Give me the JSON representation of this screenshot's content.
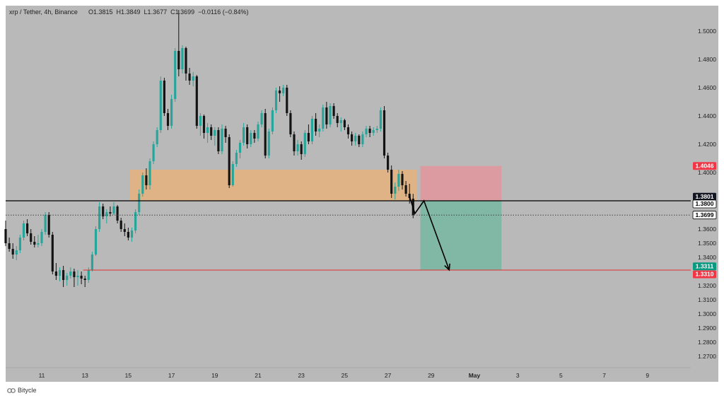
{
  "header": {
    "symbol": "xrp / Tether, 4h, Binance",
    "ohlc": "O1.3815  H1.3849  L1.3677  C1.3699  −0.0116 (−0.84%)"
  },
  "brand": {
    "name": "Bitycle"
  },
  "colors": {
    "background": "#b9b9b9",
    "bullish": "#26a69a",
    "bearish": "#131313",
    "zone": "#e6b27c",
    "stop_zone": "#e8909a",
    "target_zone": "#6fb79f",
    "red_tag": "#f23645",
    "green_tag": "#089981",
    "black_tag": "#131722"
  },
  "chart_data": {
    "type": "candlestick",
    "title": "xrp / Tether, 4h, Binance",
    "y_range": [
      1.262,
      1.518
    ],
    "x_range": [
      0,
      190
    ],
    "y_ticks": [
      "1.5000",
      "1.4800",
      "1.4600",
      "1.4400",
      "1.4200",
      "1.4000",
      "1.3600",
      "1.3500",
      "1.3400",
      "1.3200",
      "1.3100",
      "1.3000",
      "1.2900",
      "1.2800",
      "1.2700"
    ],
    "x_ticks": [
      {
        "x": 10,
        "label": "11"
      },
      {
        "x": 22,
        "label": "13"
      },
      {
        "x": 34,
        "label": "15"
      },
      {
        "x": 46,
        "label": "17"
      },
      {
        "x": 58,
        "label": "19"
      },
      {
        "x": 70,
        "label": "21"
      },
      {
        "x": 82,
        "label": "23"
      },
      {
        "x": 94,
        "label": "25"
      },
      {
        "x": 106,
        "label": "27"
      },
      {
        "x": 118,
        "label": "29"
      },
      {
        "x": 130,
        "label": "May"
      },
      {
        "x": 142,
        "label": "3"
      },
      {
        "x": 154,
        "label": "5"
      },
      {
        "x": 166,
        "label": "7"
      },
      {
        "x": 178,
        "label": "9"
      }
    ],
    "candles": [
      [
        0,
        1.36,
        1.366,
        1.348,
        1.35
      ],
      [
        1,
        1.35,
        1.354,
        1.344,
        1.346
      ],
      [
        2,
        1.346,
        1.35,
        1.339,
        1.342
      ],
      [
        3,
        1.342,
        1.348,
        1.338,
        1.345
      ],
      [
        4,
        1.345,
        1.356,
        1.343,
        1.354
      ],
      [
        5,
        1.354,
        1.366,
        1.352,
        1.364
      ],
      [
        6,
        1.364,
        1.367,
        1.355,
        1.357
      ],
      [
        7,
        1.357,
        1.36,
        1.349,
        1.351
      ],
      [
        8,
        1.351,
        1.355,
        1.347,
        1.349
      ],
      [
        9,
        1.349,
        1.356,
        1.347,
        1.35
      ],
      [
        10,
        1.35,
        1.36,
        1.348,
        1.358
      ],
      [
        11,
        1.358,
        1.372,
        1.356,
        1.37
      ],
      [
        12,
        1.37,
        1.372,
        1.354,
        1.356
      ],
      [
        13,
        1.356,
        1.358,
        1.328,
        1.33
      ],
      [
        14,
        1.33,
        1.336,
        1.324,
        1.327
      ],
      [
        15,
        1.327,
        1.333,
        1.323,
        1.331
      ],
      [
        16,
        1.331,
        1.334,
        1.319,
        1.324
      ],
      [
        17,
        1.324,
        1.329,
        1.32,
        1.327
      ],
      [
        18,
        1.327,
        1.333,
        1.325,
        1.33
      ],
      [
        19,
        1.33,
        1.332,
        1.319,
        1.326
      ],
      [
        20,
        1.326,
        1.331,
        1.32,
        1.327
      ],
      [
        21,
        1.327,
        1.33,
        1.321,
        1.325
      ],
      [
        22,
        1.325,
        1.327,
        1.319,
        1.324
      ],
      [
        23,
        1.324,
        1.333,
        1.322,
        1.331
      ],
      [
        24,
        1.331,
        1.344,
        1.33,
        1.342
      ],
      [
        25,
        1.342,
        1.362,
        1.341,
        1.36
      ],
      [
        26,
        1.36,
        1.379,
        1.358,
        1.376
      ],
      [
        27,
        1.376,
        1.378,
        1.367,
        1.369
      ],
      [
        28,
        1.369,
        1.374,
        1.364,
        1.372
      ],
      [
        29,
        1.372,
        1.376,
        1.369,
        1.371
      ],
      [
        30,
        1.371,
        1.379,
        1.37,
        1.376
      ],
      [
        31,
        1.376,
        1.377,
        1.364,
        1.366
      ],
      [
        32,
        1.366,
        1.368,
        1.358,
        1.36
      ],
      [
        33,
        1.36,
        1.364,
        1.355,
        1.358
      ],
      [
        34,
        1.358,
        1.361,
        1.352,
        1.354
      ],
      [
        35,
        1.354,
        1.361,
        1.351,
        1.359
      ],
      [
        36,
        1.359,
        1.374,
        1.357,
        1.372
      ],
      [
        37,
        1.372,
        1.388,
        1.37,
        1.385
      ],
      [
        38,
        1.385,
        1.4,
        1.383,
        1.398
      ],
      [
        39,
        1.398,
        1.403,
        1.388,
        1.391
      ],
      [
        40,
        1.391,
        1.41,
        1.388,
        1.408
      ],
      [
        41,
        1.408,
        1.422,
        1.406,
        1.42
      ],
      [
        42,
        1.42,
        1.432,
        1.418,
        1.43
      ],
      [
        43,
        1.43,
        1.468,
        1.428,
        1.465
      ],
      [
        44,
        1.465,
        1.467,
        1.44,
        1.442
      ],
      [
        45,
        1.442,
        1.445,
        1.43,
        1.433
      ],
      [
        46,
        1.433,
        1.455,
        1.431,
        1.452
      ],
      [
        47,
        1.452,
        1.488,
        1.45,
        1.486
      ],
      [
        48,
        1.486,
        1.515,
        1.468,
        1.473
      ],
      [
        49,
        1.473,
        1.49,
        1.47,
        1.488
      ],
      [
        50,
        1.488,
        1.489,
        1.465,
        1.47
      ],
      [
        51,
        1.47,
        1.474,
        1.462,
        1.465
      ],
      [
        52,
        1.465,
        1.471,
        1.461,
        1.468
      ],
      [
        53,
        1.468,
        1.469,
        1.431,
        1.433
      ],
      [
        54,
        1.433,
        1.442,
        1.426,
        1.44
      ],
      [
        55,
        1.44,
        1.441,
        1.424,
        1.428
      ],
      [
        56,
        1.428,
        1.435,
        1.421,
        1.432
      ],
      [
        57,
        1.432,
        1.434,
        1.423,
        1.426
      ],
      [
        58,
        1.426,
        1.432,
        1.419,
        1.43
      ],
      [
        59,
        1.43,
        1.432,
        1.413,
        1.415
      ],
      [
        60,
        1.415,
        1.434,
        1.413,
        1.431
      ],
      [
        61,
        1.431,
        1.433,
        1.421,
        1.425
      ],
      [
        62,
        1.425,
        1.427,
        1.389,
        1.391
      ],
      [
        63,
        1.391,
        1.408,
        1.39,
        1.406
      ],
      [
        64,
        1.406,
        1.416,
        1.404,
        1.414
      ],
      [
        65,
        1.414,
        1.423,
        1.41,
        1.421
      ],
      [
        66,
        1.421,
        1.435,
        1.419,
        1.432
      ],
      [
        67,
        1.432,
        1.434,
        1.417,
        1.42
      ],
      [
        68,
        1.42,
        1.43,
        1.418,
        1.428
      ],
      [
        69,
        1.428,
        1.43,
        1.421,
        1.424
      ],
      [
        70,
        1.424,
        1.436,
        1.422,
        1.434
      ],
      [
        71,
        1.434,
        1.444,
        1.432,
        1.442
      ],
      [
        72,
        1.442,
        1.445,
        1.41,
        1.412
      ],
      [
        73,
        1.412,
        1.431,
        1.41,
        1.429
      ],
      [
        74,
        1.429,
        1.446,
        1.427,
        1.444
      ],
      [
        75,
        1.444,
        1.46,
        1.442,
        1.458
      ],
      [
        76,
        1.458,
        1.461,
        1.45,
        1.456
      ],
      [
        77,
        1.456,
        1.462,
        1.454,
        1.46
      ],
      [
        78,
        1.46,
        1.462,
        1.44,
        1.442
      ],
      [
        79,
        1.442,
        1.444,
        1.425,
        1.427
      ],
      [
        80,
        1.427,
        1.429,
        1.412,
        1.415
      ],
      [
        81,
        1.415,
        1.423,
        1.412,
        1.42
      ],
      [
        82,
        1.42,
        1.422,
        1.409,
        1.413
      ],
      [
        83,
        1.413,
        1.43,
        1.411,
        1.428
      ],
      [
        84,
        1.428,
        1.434,
        1.42,
        1.422
      ],
      [
        85,
        1.422,
        1.44,
        1.42,
        1.438
      ],
      [
        86,
        1.438,
        1.442,
        1.426,
        1.429
      ],
      [
        87,
        1.429,
        1.434,
        1.425,
        1.431
      ],
      [
        88,
        1.431,
        1.448,
        1.429,
        1.446
      ],
      [
        89,
        1.446,
        1.45,
        1.431,
        1.434
      ],
      [
        90,
        1.434,
        1.449,
        1.432,
        1.447
      ],
      [
        91,
        1.447,
        1.449,
        1.438,
        1.44
      ],
      [
        92,
        1.44,
        1.442,
        1.432,
        1.435
      ],
      [
        93,
        1.435,
        1.439,
        1.429,
        1.437
      ],
      [
        94,
        1.437,
        1.438,
        1.43,
        1.432
      ],
      [
        95,
        1.432,
        1.434,
        1.424,
        1.427
      ],
      [
        96,
        1.427,
        1.429,
        1.419,
        1.422
      ],
      [
        97,
        1.422,
        1.428,
        1.419,
        1.426
      ],
      [
        98,
        1.426,
        1.427,
        1.418,
        1.42
      ],
      [
        99,
        1.42,
        1.429,
        1.418,
        1.427
      ],
      [
        100,
        1.427,
        1.433,
        1.425,
        1.431
      ],
      [
        101,
        1.431,
        1.433,
        1.425,
        1.428
      ],
      [
        102,
        1.428,
        1.432,
        1.426,
        1.43
      ],
      [
        103,
        1.43,
        1.433,
        1.428,
        1.431
      ],
      [
        104,
        1.431,
        1.446,
        1.429,
        1.444
      ],
      [
        105,
        1.444,
        1.447,
        1.41,
        1.412
      ],
      [
        106,
        1.412,
        1.414,
        1.4,
        1.402
      ],
      [
        107,
        1.402,
        1.405,
        1.382,
        1.385
      ],
      [
        108,
        1.385,
        1.393,
        1.381,
        1.39
      ],
      [
        109,
        1.39,
        1.402,
        1.387,
        1.399
      ],
      [
        110,
        1.399,
        1.401,
        1.388,
        1.391
      ],
      [
        111,
        1.391,
        1.394,
        1.383,
        1.385
      ],
      [
        112,
        1.385,
        1.392,
        1.378,
        1.382
      ],
      [
        113,
        1.3815,
        1.3849,
        1.3677,
        1.3699
      ]
    ],
    "annotations": {
      "demand_zone": {
        "x0": 34.5,
        "x1": 114,
        "y0": 1.38,
        "y1": 1.402
      },
      "stop_box": {
        "x0": 115,
        "x1": 137.5,
        "y0": 1.38,
        "y1": 1.4046
      },
      "target_box": {
        "x0": 115,
        "x1": 137.5,
        "y0": 1.3311,
        "y1": 1.38
      },
      "entry_line": 1.38,
      "current_price": 1.3699,
      "target_line": 1.331,
      "projection_path": [
        [
          112,
          1.383
        ],
        [
          113.5,
          1.371
        ],
        [
          116,
          1.38
        ],
        [
          123,
          1.3311
        ]
      ]
    },
    "price_tags": [
      {
        "price": 1.4046,
        "label": "1.4046",
        "kind": "red"
      },
      {
        "price": 1.3801,
        "label": "1.3801",
        "kind": "black"
      },
      {
        "price": 1.38,
        "label": "1.3800",
        "kind": "outline"
      },
      {
        "price": 1.3699,
        "label": "1.3699",
        "kind": "outline"
      },
      {
        "price": 1.3311,
        "label": "1.3311",
        "kind": "green"
      },
      {
        "price": 1.331,
        "label": "1.3310",
        "kind": "red"
      }
    ]
  }
}
